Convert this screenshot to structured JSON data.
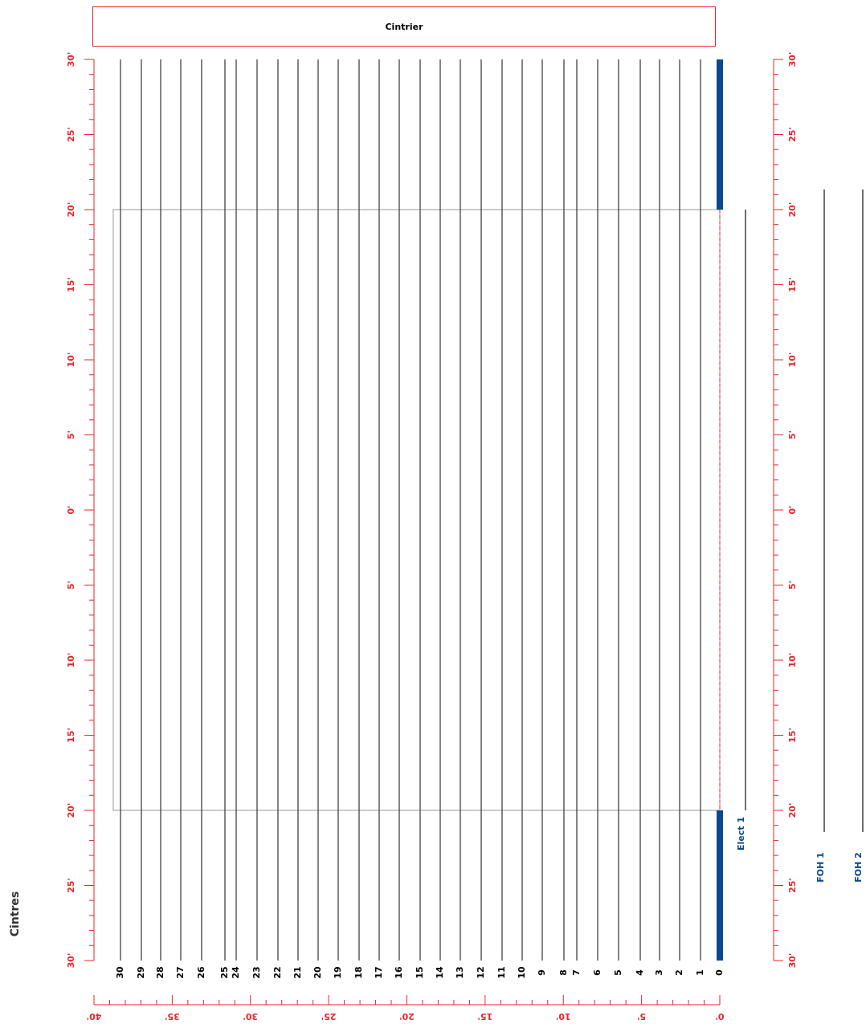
{
  "header": {
    "title": "Cintrier"
  },
  "page_label": "Cintres",
  "linesets": [
    {
      "label": "30"
    },
    {
      "label": "29"
    },
    {
      "label": "28"
    },
    {
      "label": "27"
    },
    {
      "label": "26"
    },
    {
      "label": "25"
    },
    {
      "label": "24"
    },
    {
      "label": "23"
    },
    {
      "label": "22"
    },
    {
      "label": "21"
    },
    {
      "label": "20"
    },
    {
      "label": "19"
    },
    {
      "label": "18"
    },
    {
      "label": "17"
    },
    {
      "label": "16"
    },
    {
      "label": "15"
    },
    {
      "label": "14"
    },
    {
      "label": "13"
    },
    {
      "label": "12"
    },
    {
      "label": "11"
    },
    {
      "label": "10"
    },
    {
      "label": "9"
    },
    {
      "label": "8"
    },
    {
      "label": "7"
    },
    {
      "label": "6"
    },
    {
      "label": "5"
    },
    {
      "label": "4"
    },
    {
      "label": "3"
    },
    {
      "label": "2"
    },
    {
      "label": "1"
    },
    {
      "label": "0"
    }
  ],
  "positions": [
    {
      "label": "Elect 1"
    },
    {
      "label": "FOH 1"
    },
    {
      "label": "FOH 2"
    }
  ],
  "side_ruler_labels": [
    "30'",
    "25'",
    "20'",
    "15'",
    "10'",
    "5'",
    "0'",
    "5'",
    "10'",
    "15'",
    "20'",
    "25'",
    "30'"
  ],
  "bottom_ruler_labels": [
    "40'",
    "35'",
    "30'",
    "25'",
    "20'",
    "15'",
    "10'",
    "5'",
    "0'"
  ],
  "colors": {
    "ruler": "#e8262a",
    "proscenium": "#0b4a8a",
    "batten": "#333333",
    "label_blue": "#0b4a8a"
  }
}
